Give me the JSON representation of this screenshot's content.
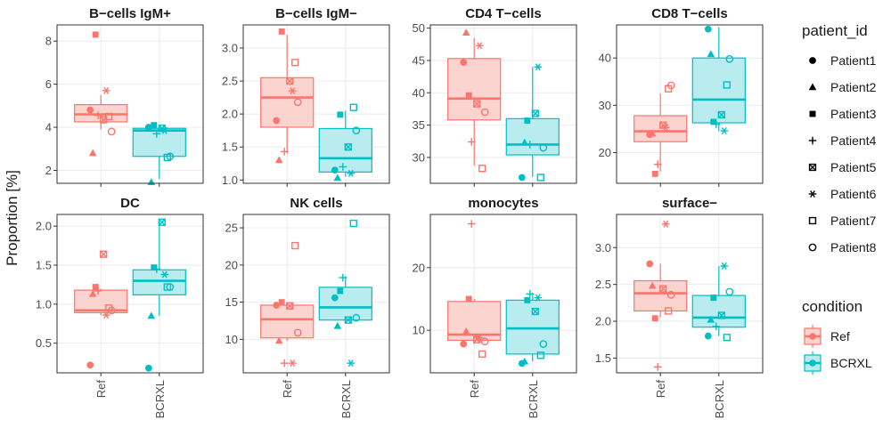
{
  "y_axis_title": "Proportion [%]",
  "colors": {
    "Ref": "#F8766D",
    "BCRXL": "#00BFC4",
    "Ref_fill": "#FBD3CF",
    "BCRXL_fill": "#B8ECEE"
  },
  "legend": {
    "patient_title": "patient_id",
    "patients": [
      {
        "label": "Patient1",
        "shape": "circle-filled"
      },
      {
        "label": "Patient2",
        "shape": "triangle-filled"
      },
      {
        "label": "Patient3",
        "shape": "square-filled"
      },
      {
        "label": "Patient4",
        "shape": "plus"
      },
      {
        "label": "Patient5",
        "shape": "square-cross"
      },
      {
        "label": "Patient6",
        "shape": "asterisk"
      },
      {
        "label": "Patient7",
        "shape": "square-open"
      },
      {
        "label": "Patient8",
        "shape": "circle-open"
      }
    ],
    "condition_title": "condition",
    "conditions": [
      "Ref",
      "BCRXL"
    ]
  },
  "chart_data": {
    "type": "box",
    "x_categories": [
      "Ref",
      "BCRXL"
    ],
    "ylabel": "Proportion [%]",
    "panels": [
      {
        "title": "B−cells IgM+",
        "ylim": [
          1.4,
          8.75
        ],
        "yticks": [
          2,
          4,
          6,
          8
        ],
        "boxes": {
          "Ref": {
            "min": 3.9,
            "q1": 4.25,
            "median": 4.6,
            "q3": 5.05,
            "max": 5.5
          },
          "BCRXL": {
            "min": 1.6,
            "q1": 2.65,
            "median": 3.85,
            "q3": 3.95,
            "max": 4.1
          }
        },
        "points": {
          "Ref": [
            4.8,
            2.8,
            8.3,
            4.55,
            4.35,
            5.7,
            4.5,
            3.8
          ],
          "BCRXL": [
            4.0,
            1.45,
            4.1,
            3.7,
            3.95,
            3.85,
            2.6,
            2.65
          ]
        }
      },
      {
        "title": "B−cells IgM−",
        "ylim": [
          0.95,
          3.35
        ],
        "yticks": [
          1.0,
          1.5,
          2.0,
          2.5,
          3.0
        ],
        "boxes": {
          "Ref": {
            "min": 1.4,
            "q1": 1.8,
            "median": 2.25,
            "q3": 2.55,
            "max": 3.2
          },
          "BCRXL": {
            "min": 1.05,
            "q1": 1.12,
            "median": 1.33,
            "q3": 1.78,
            "max": 2.05
          }
        },
        "points": {
          "Ref": [
            1.9,
            1.3,
            3.25,
            1.43,
            2.5,
            2.35,
            2.78,
            2.18
          ],
          "BCRXL": [
            1.15,
            1.03,
            1.99,
            1.2,
            1.5,
            1.1,
            2.1,
            1.75
          ]
        }
      },
      {
        "title": "CD4 T−cells",
        "ylim": [
          26.0,
          50.5
        ],
        "yticks": [
          30,
          35,
          40,
          45,
          50
        ],
        "boxes": {
          "Ref": {
            "min": 28.7,
            "q1": 35.8,
            "median": 39.1,
            "q3": 45.3,
            "max": 48.5
          },
          "BCRXL": {
            "min": 27.0,
            "q1": 30.4,
            "median": 32.0,
            "q3": 36.0,
            "max": 44.0
          }
        },
        "points": {
          "Ref": [
            44.7,
            49.3,
            39.6,
            32.4,
            38.3,
            47.3,
            28.3,
            37.0
          ],
          "BCRXL": [
            26.9,
            32.3,
            35.7,
            32.0,
            36.8,
            44.0,
            26.9,
            31.5
          ]
        }
      },
      {
        "title": "CD8 T−cells",
        "ylim": [
          13.5,
          47.0
        ],
        "yticks": [
          20,
          30,
          40
        ],
        "boxes": {
          "Ref": {
            "min": 16.0,
            "q1": 22.3,
            "median": 24.5,
            "q3": 27.8,
            "max": 32.5
          },
          "BCRXL": {
            "min": 24.5,
            "q1": 26.3,
            "median": 31.2,
            "q3": 40.0,
            "max": 46.5
          }
        },
        "points": {
          "Ref": [
            23.8,
            24.0,
            15.5,
            17.5,
            25.8,
            25.3,
            33.5,
            34.2
          ],
          "BCRXL": [
            46.1,
            40.8,
            26.5,
            26.0,
            28.0,
            24.6,
            34.3,
            39.8
          ]
        }
      },
      {
        "title": "DC",
        "ylim": [
          0.12,
          2.15
        ],
        "yticks": [
          0.5,
          1.0,
          1.5,
          2.0
        ],
        "boxes": {
          "Ref": {
            "min": 0.86,
            "q1": 0.89,
            "median": 0.92,
            "q3": 1.18,
            "max": 1.2
          },
          "BCRXL": {
            "min": 0.85,
            "q1": 1.12,
            "median": 1.3,
            "q3": 1.44,
            "max": 2.05
          }
        },
        "points": {
          "Ref": [
            0.22,
            1.13,
            1.22,
            1.17,
            1.64,
            0.86,
            0.95,
            0.92
          ],
          "BCRXL": [
            0.18,
            0.85,
            1.47,
            1.45,
            2.05,
            1.38,
            1.22,
            1.22
          ]
        }
      },
      {
        "title": "NK cells",
        "ylim": [
          5.5,
          26.8
        ],
        "yticks": [
          10,
          15,
          20,
          25
        ],
        "boxes": {
          "Ref": {
            "min": 9.8,
            "q1": 10.2,
            "median": 12.7,
            "q3": 14.6,
            "max": 15.0
          },
          "BCRXL": {
            "min": 12.4,
            "q1": 12.6,
            "median": 14.3,
            "q3": 17.0,
            "max": 18.5
          }
        },
        "points": {
          "Ref": [
            14.6,
            9.8,
            15.0,
            6.8,
            14.5,
            6.8,
            22.6,
            10.9
          ],
          "BCRXL": [
            15.6,
            11.8,
            16.5,
            18.3,
            12.6,
            6.8,
            25.6,
            12.9
          ]
        }
      },
      {
        "title": "monocytes",
        "ylim": [
          3.2,
          28.5
        ],
        "yticks": [
          10,
          20
        ],
        "boxes": {
          "Ref": {
            "min": 7.8,
            "q1": 8.4,
            "median": 9.3,
            "q3": 14.6,
            "max": 15.0
          },
          "BCRXL": {
            "min": 5.0,
            "q1": 6.2,
            "median": 10.3,
            "q3": 14.8,
            "max": 16.0
          }
        },
        "points": {
          "Ref": [
            7.8,
            9.8,
            15.0,
            27.0,
            8.5,
            8.8,
            6.2,
            8.2
          ],
          "BCRXL": [
            4.7,
            5.0,
            14.8,
            15.8,
            13.0,
            15.2,
            6.0,
            7.8
          ]
        }
      },
      {
        "title": "surface−",
        "ylim": [
          1.3,
          3.45
        ],
        "yticks": [
          1.5,
          2.0,
          2.5,
          3.0
        ],
        "boxes": {
          "Ref": {
            "min": 2.05,
            "q1": 2.14,
            "median": 2.38,
            "q3": 2.55,
            "max": 2.78
          },
          "BCRXL": {
            "min": 1.8,
            "q1": 1.92,
            "median": 2.05,
            "q3": 2.35,
            "max": 2.75
          }
        },
        "points": {
          "Ref": [
            2.78,
            2.48,
            2.04,
            1.38,
            2.44,
            3.32,
            2.14,
            2.36
          ],
          "BCRXL": [
            1.8,
            2.02,
            2.32,
            1.93,
            2.08,
            2.75,
            1.78,
            2.4
          ]
        }
      }
    ]
  }
}
